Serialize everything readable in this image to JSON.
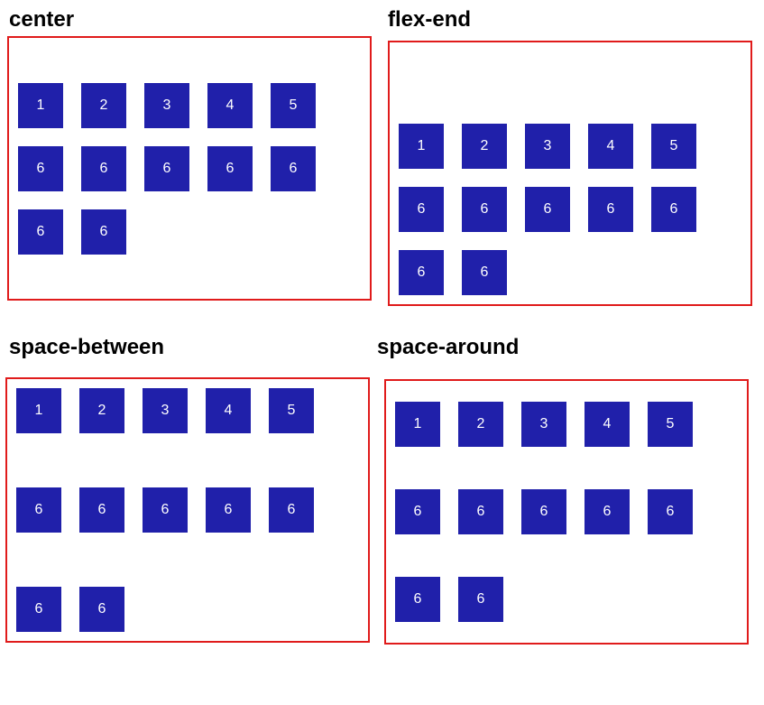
{
  "colors": {
    "border": "#e01b1b",
    "item_bg": "#2020aa",
    "item_text": "#ffffff"
  },
  "panels": [
    {
      "title": "center",
      "items": [
        "1",
        "2",
        "3",
        "4",
        "5",
        "6",
        "6",
        "6",
        "6",
        "6",
        "6",
        "6"
      ]
    },
    {
      "title": "flex-end",
      "items": [
        "1",
        "2",
        "3",
        "4",
        "5",
        "6",
        "6",
        "6",
        "6",
        "6",
        "6",
        "6"
      ]
    },
    {
      "title": "space-between",
      "items": [
        "1",
        "2",
        "3",
        "4",
        "5",
        "6",
        "6",
        "6",
        "6",
        "6",
        "6",
        "6"
      ]
    },
    {
      "title": "space-around",
      "items": [
        "1",
        "2",
        "3",
        "4",
        "5",
        "6",
        "6",
        "6",
        "6",
        "6",
        "6",
        "6"
      ]
    }
  ]
}
